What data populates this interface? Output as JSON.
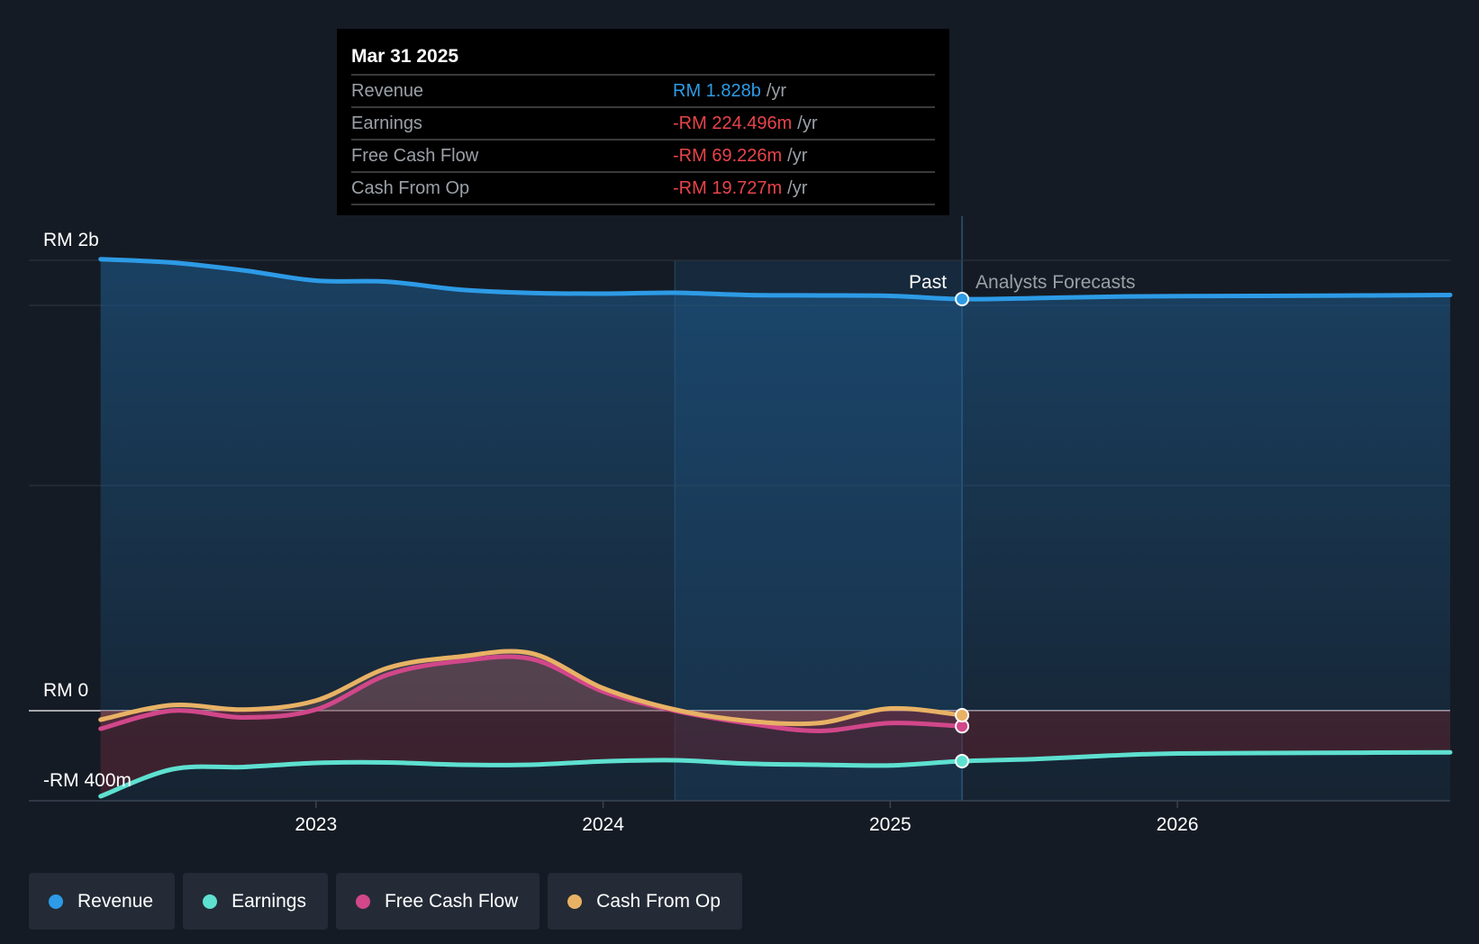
{
  "tooltip": {
    "date": "Mar 31 2025",
    "rows": [
      {
        "label": "Revenue",
        "value": "RM 1.828b",
        "unit": "/yr",
        "color": "#2d9be6"
      },
      {
        "label": "Earnings",
        "value": "-RM 224.496m",
        "unit": "/yr",
        "color": "#e8434a"
      },
      {
        "label": "Free Cash Flow",
        "value": "-RM 69.226m",
        "unit": "/yr",
        "color": "#e8434a"
      },
      {
        "label": "Cash From Op",
        "value": "-RM 19.727m",
        "unit": "/yr",
        "color": "#e8434a"
      }
    ]
  },
  "divider": {
    "past_label": "Past",
    "forecast_label": "Analysts Forecasts"
  },
  "legend": [
    {
      "label": "Revenue",
      "color": "#2d9be6"
    },
    {
      "label": "Earnings",
      "color": "#5ee0d0"
    },
    {
      "label": "Free Cash Flow",
      "color": "#d1478a"
    },
    {
      "label": "Cash From Op",
      "color": "#e8b265"
    }
  ],
  "chart_data": {
    "type": "line",
    "y_tick_labels": [
      "RM 2b",
      "RM 0",
      "-RM 400m"
    ],
    "y_ticks": [
      2000,
      0,
      -400
    ],
    "ylim": [
      -400,
      2000
    ],
    "x_tick_labels": [
      "2023",
      "2024",
      "2025",
      "2026"
    ],
    "x_ticks": [
      2023.0,
      2024.0,
      2025.0,
      2026.0
    ],
    "xlim": [
      2022.0,
      2026.95
    ],
    "past_end": 2025.25,
    "highlight_start": 2024.25,
    "series": [
      {
        "name": "Revenue",
        "color": "#2d9be6",
        "x": [
          2022.25,
          2022.5,
          2022.75,
          2023.0,
          2023.25,
          2023.5,
          2023.75,
          2024.0,
          2024.25,
          2024.5,
          2024.75,
          2025.0,
          2025.25,
          2025.5,
          2025.75,
          2026.0,
          2026.5,
          2026.95
        ],
        "y": [
          2005,
          1990,
          1955,
          1910,
          1905,
          1870,
          1855,
          1852,
          1856,
          1846,
          1844,
          1842,
          1828,
          1832,
          1838,
          1841,
          1843,
          1846
        ]
      },
      {
        "name": "Earnings",
        "color": "#5ee0d0",
        "x": [
          2022.25,
          2022.5,
          2022.75,
          2023.0,
          2023.25,
          2023.5,
          2023.75,
          2024.0,
          2024.25,
          2024.5,
          2024.75,
          2025.0,
          2025.25,
          2025.5,
          2025.75,
          2026.0,
          2026.5,
          2026.95
        ],
        "y": [
          -380,
          -260,
          -250,
          -232,
          -230,
          -240,
          -240,
          -225,
          -220,
          -235,
          -240,
          -243,
          -224,
          -215,
          -200,
          -190,
          -187,
          -185
        ]
      },
      {
        "name": "Free Cash Flow",
        "color": "#d1478a",
        "x": [
          2022.25,
          2022.5,
          2022.75,
          2023.0,
          2023.25,
          2023.5,
          2023.75,
          2024.0,
          2024.25,
          2024.5,
          2024.75,
          2025.0,
          2025.25
        ],
        "y": [
          -80,
          0,
          -30,
          5,
          160,
          220,
          230,
          85,
          0,
          -55,
          -90,
          -55,
          -69
        ]
      },
      {
        "name": "Cash From Op",
        "color": "#e8b265",
        "x": [
          2022.25,
          2022.5,
          2022.75,
          2023.0,
          2023.25,
          2023.5,
          2023.75,
          2024.0,
          2024.25,
          2024.5,
          2024.75,
          2025.0,
          2025.25
        ],
        "y": [
          -40,
          25,
          5,
          45,
          190,
          240,
          255,
          100,
          5,
          -45,
          -55,
          10,
          -20
        ]
      }
    ]
  }
}
